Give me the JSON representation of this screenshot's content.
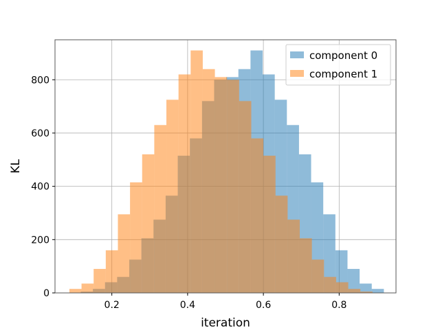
{
  "chart_data": {
    "type": "bar",
    "subtype": "overlapping-histogram",
    "xlabel": "iteration",
    "ylabel": "KL",
    "xlim": [
      0.05,
      0.95
    ],
    "ylim": [
      0,
      950
    ],
    "xticks": [
      "0.2",
      "0.4",
      "0.6",
      "0.8"
    ],
    "xtick_values": [
      0.2,
      0.4,
      0.6,
      0.8
    ],
    "yticks": [
      "0",
      "200",
      "400",
      "600",
      "800"
    ],
    "ytick_values": [
      0,
      200,
      400,
      600,
      800
    ],
    "grid": true,
    "legend_position": "top-right",
    "bin_width": 0.032,
    "series": [
      {
        "name": "component 0",
        "color": "#1f77b4",
        "alpha": 0.5,
        "bin_starts": [
          0.118,
          0.15,
          0.182,
          0.214,
          0.246,
          0.278,
          0.31,
          0.342,
          0.374,
          0.406,
          0.438,
          0.47,
          0.502,
          0.534,
          0.566,
          0.598,
          0.63,
          0.662,
          0.694,
          0.726,
          0.758,
          0.79,
          0.822,
          0.854,
          0.886
        ],
        "values": [
          5,
          15,
          40,
          60,
          125,
          205,
          275,
          365,
          515,
          580,
          720,
          800,
          810,
          840,
          910,
          820,
          725,
          630,
          520,
          415,
          295,
          160,
          90,
          35,
          15
        ]
      },
      {
        "name": "component 1",
        "color": "#ff7f0e",
        "alpha": 0.5,
        "bin_starts": [
          0.088,
          0.12,
          0.152,
          0.184,
          0.216,
          0.248,
          0.28,
          0.312,
          0.344,
          0.376,
          0.408,
          0.44,
          0.472,
          0.504,
          0.536,
          0.568,
          0.6,
          0.632,
          0.664,
          0.696,
          0.728,
          0.76,
          0.792,
          0.824,
          0.856
        ],
        "values": [
          15,
          35,
          90,
          160,
          295,
          415,
          520,
          630,
          725,
          820,
          910,
          840,
          810,
          800,
          720,
          580,
          515,
          365,
          275,
          205,
          125,
          60,
          40,
          15,
          5
        ]
      }
    ]
  }
}
